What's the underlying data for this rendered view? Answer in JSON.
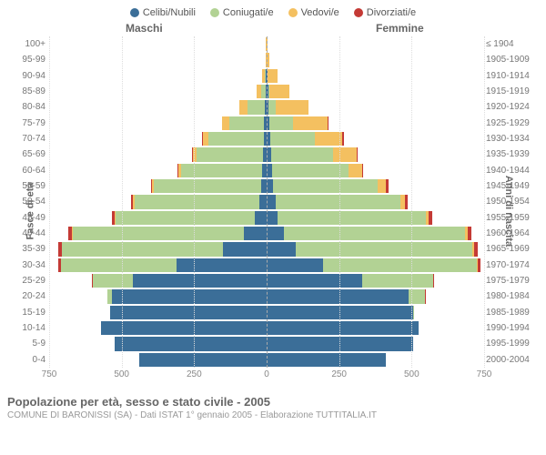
{
  "legend": [
    {
      "label": "Celibi/Nubili",
      "color": "#3b6e98"
    },
    {
      "label": "Coniugati/e",
      "color": "#b2d294"
    },
    {
      "label": "Vedovi/e",
      "color": "#f4c060"
    },
    {
      "label": "Divorziati/e",
      "color": "#c43a35"
    }
  ],
  "gender_left": "Maschi",
  "gender_right": "Femmine",
  "y_left_title": "Fasce di età",
  "y_right_title": "Anni di nascita",
  "x_max": 750,
  "x_ticks": [
    750,
    500,
    250,
    0,
    250,
    500,
    750
  ],
  "colors": {
    "single": "#3b6e98",
    "married": "#b2d294",
    "widowed": "#f4c060",
    "divorced": "#c43a35",
    "grid": "#e8e8e8",
    "center": "#aaaaaa"
  },
  "rows": [
    {
      "age": "100+",
      "birth": "≤ 1904",
      "m": [
        0,
        0,
        3,
        0
      ],
      "f": [
        0,
        0,
        3,
        0
      ]
    },
    {
      "age": "95-99",
      "birth": "1905-1909",
      "m": [
        0,
        0,
        4,
        0
      ],
      "f": [
        0,
        0,
        10,
        0
      ]
    },
    {
      "age": "90-94",
      "birth": "1910-1914",
      "m": [
        3,
        2,
        12,
        0
      ],
      "f": [
        2,
        2,
        35,
        0
      ]
    },
    {
      "age": "85-89",
      "birth": "1915-1919",
      "m": [
        3,
        15,
        18,
        0
      ],
      "f": [
        5,
        5,
        70,
        0
      ]
    },
    {
      "age": "80-84",
      "birth": "1920-1924",
      "m": [
        5,
        60,
        30,
        0
      ],
      "f": [
        5,
        25,
        115,
        0
      ]
    },
    {
      "age": "75-79",
      "birth": "1925-1929",
      "m": [
        8,
        120,
        25,
        0
      ],
      "f": [
        10,
        80,
        120,
        2
      ]
    },
    {
      "age": "70-74",
      "birth": "1930-1934",
      "m": [
        10,
        190,
        20,
        3
      ],
      "f": [
        12,
        155,
        95,
        5
      ]
    },
    {
      "age": "65-69",
      "birth": "1935-1939",
      "m": [
        12,
        230,
        12,
        4
      ],
      "f": [
        15,
        215,
        80,
        5
      ]
    },
    {
      "age": "60-64",
      "birth": "1940-1944",
      "m": [
        15,
        280,
        8,
        4
      ],
      "f": [
        18,
        265,
        45,
        6
      ]
    },
    {
      "age": "55-59",
      "birth": "1945-1949",
      "m": [
        18,
        370,
        6,
        6
      ],
      "f": [
        22,
        360,
        30,
        8
      ]
    },
    {
      "age": "50-54",
      "birth": "1950-1954",
      "m": [
        25,
        430,
        5,
        8
      ],
      "f": [
        30,
        430,
        18,
        10
      ]
    },
    {
      "age": "45-49",
      "birth": "1955-1959",
      "m": [
        40,
        480,
        3,
        10
      ],
      "f": [
        38,
        510,
        12,
        12
      ]
    },
    {
      "age": "40-44",
      "birth": "1960-1964",
      "m": [
        80,
        590,
        2,
        12
      ],
      "f": [
        60,
        625,
        8,
        14
      ]
    },
    {
      "age": "35-39",
      "birth": "1965-1969",
      "m": [
        150,
        555,
        1,
        12
      ],
      "f": [
        100,
        610,
        4,
        13
      ]
    },
    {
      "age": "30-34",
      "birth": "1970-1974",
      "m": [
        310,
        400,
        0,
        8
      ],
      "f": [
        195,
        530,
        2,
        10
      ]
    },
    {
      "age": "25-29",
      "birth": "1975-1979",
      "m": [
        460,
        140,
        0,
        2
      ],
      "f": [
        330,
        245,
        0,
        4
      ]
    },
    {
      "age": "20-24",
      "birth": "1980-1984",
      "m": [
        535,
        15,
        0,
        0
      ],
      "f": [
        490,
        55,
        0,
        1
      ]
    },
    {
      "age": "15-19",
      "birth": "1985-1989",
      "m": [
        540,
        0,
        0,
        0
      ],
      "f": [
        505,
        2,
        0,
        0
      ]
    },
    {
      "age": "10-14",
      "birth": "1990-1994",
      "m": [
        570,
        0,
        0,
        0
      ],
      "f": [
        525,
        0,
        0,
        0
      ]
    },
    {
      "age": "5-9",
      "birth": "1995-1999",
      "m": [
        525,
        0,
        0,
        0
      ],
      "f": [
        505,
        0,
        0,
        0
      ]
    },
    {
      "age": "0-4",
      "birth": "2000-2004",
      "m": [
        440,
        0,
        0,
        0
      ],
      "f": [
        410,
        0,
        0,
        0
      ]
    }
  ],
  "footer_title": "Popolazione per età, sesso e stato civile - 2005",
  "footer_sub": "COMUNE DI BARONISSI (SA) - Dati ISTAT 1° gennaio 2005 - Elaborazione TUTTITALIA.IT"
}
